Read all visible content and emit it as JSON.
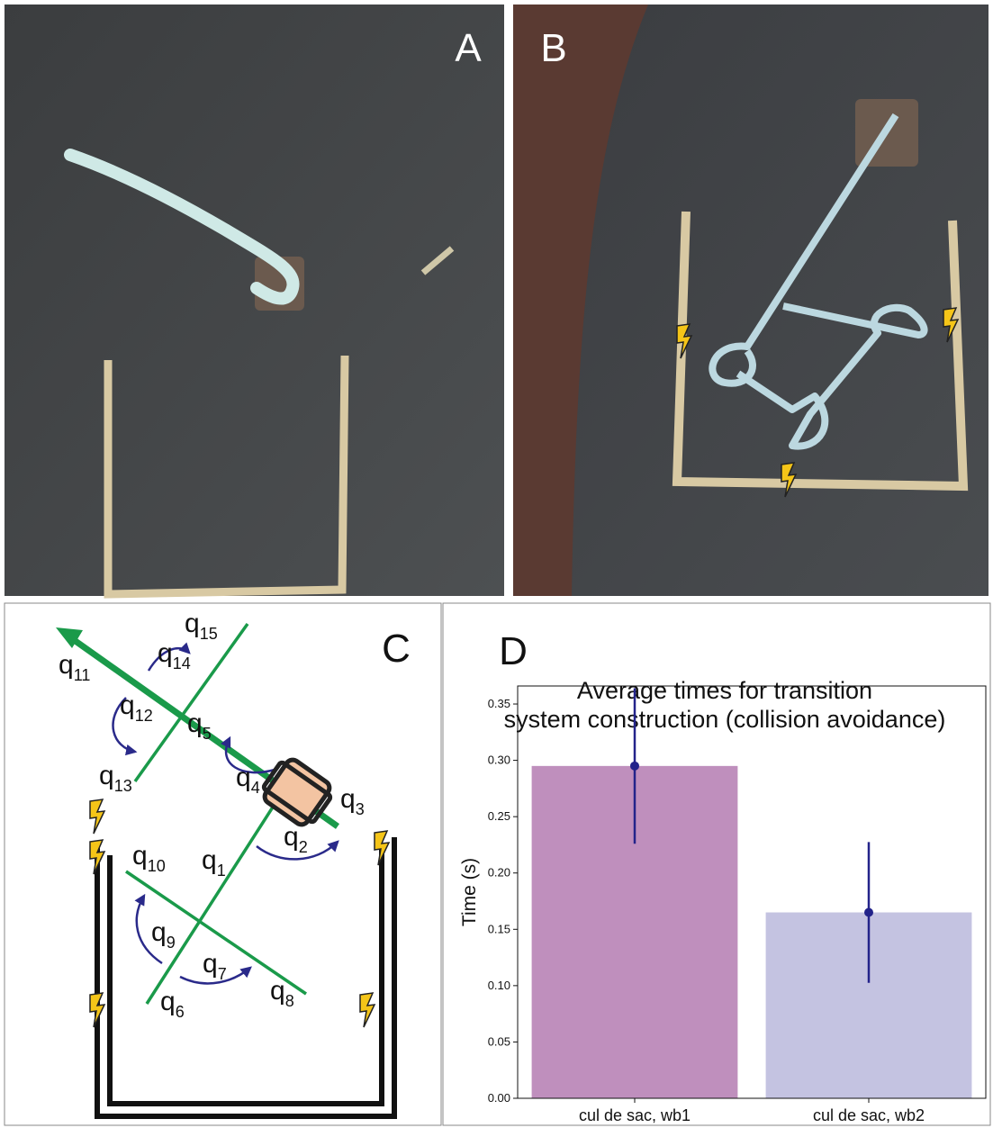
{
  "panels": {
    "a": {
      "label": "A"
    },
    "b": {
      "label": "B"
    },
    "c": {
      "label": "C",
      "states": [
        {
          "letter": "q",
          "sub": "1"
        },
        {
          "letter": "q",
          "sub": "2"
        },
        {
          "letter": "q",
          "sub": "3"
        },
        {
          "letter": "q",
          "sub": "4"
        },
        {
          "letter": "q",
          "sub": "5"
        },
        {
          "letter": "q",
          "sub": "6"
        },
        {
          "letter": "q",
          "sub": "7"
        },
        {
          "letter": "q",
          "sub": "8"
        },
        {
          "letter": "q",
          "sub": "9"
        },
        {
          "letter": "q",
          "sub": "10"
        },
        {
          "letter": "q",
          "sub": "11"
        },
        {
          "letter": "q",
          "sub": "12"
        },
        {
          "letter": "q",
          "sub": "13"
        },
        {
          "letter": "q",
          "sub": "14"
        },
        {
          "letter": "q",
          "sub": "15"
        }
      ]
    },
    "d": {
      "label": "D"
    }
  },
  "chart_data": {
    "type": "bar",
    "title": [
      "Average times for transition",
      "system construction (collision avoidance)"
    ],
    "ylabel": "Time (s)",
    "categories": [
      "cul de sac, wb1",
      "cul de sac, wb2"
    ],
    "values": [
      0.295,
      0.165
    ],
    "errors": [
      0.069,
      0.0625
    ],
    "colors": [
      "#bf8fbd",
      "#c4c3e1"
    ],
    "error_color": "#23238a",
    "ylim": [
      0,
      0.366
    ],
    "yticks": [
      {
        "value": 0,
        "label": "0.00"
      },
      {
        "value": 0.05,
        "label": "0.05"
      },
      {
        "value": 0.1,
        "label": "0.10"
      },
      {
        "value": 0.15,
        "label": "0.15"
      },
      {
        "value": 0.2,
        "label": "0.20"
      },
      {
        "value": 0.25,
        "label": "0.25"
      },
      {
        "value": 0.3,
        "label": "0.30"
      },
      {
        "value": 0.35,
        "label": "0.35"
      }
    ]
  }
}
